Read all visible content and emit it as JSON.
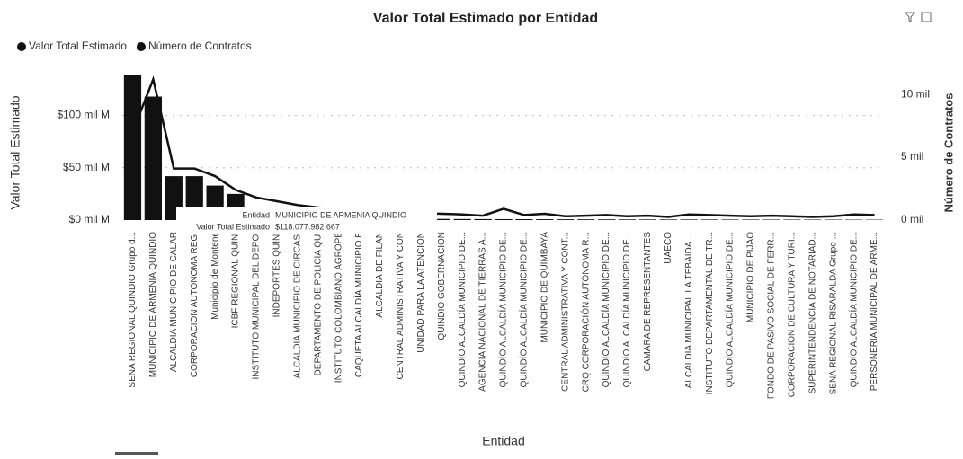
{
  "chart_data": {
    "type": "bar",
    "title": "Valor Total Estimado por Entidad",
    "x_label": "Entidad",
    "y_label": "Valor Total Estimado",
    "y2_label": "Número de Contratos",
    "categories": [
      "SENA REGIONAL QUINDIO Grupo d...",
      "MUNICIPIO DE ARMENIA QUINDIO",
      "ALCALDIA MUNICIPIO DE CALAR",
      "CORPORACION AUTONOMA REGI",
      "Municipio de Montene",
      "ICBF REGIONAL QUINI",
      "INSTITUTO MUNICIPAL DEL DEPOI",
      "INDEPORTES QUINI",
      "ALCALDIA MUNICIPIO DE CIRCASI",
      "DEPARTAMENTO DE POLICIA QUI",
      "INSTITUTO COLOMBIANO AGROPE",
      "CAQUETA ALCALDÍA MUNICIPIO E",
      "ALCALDIA DE FILAN",
      "CENTRAL ADMINISTRATIVA Y CON",
      "UNIDAD PARA LA ATENCION",
      "QUINDIO GOBERNACION",
      "QUINDÍO ALCALDÍA MUNICIPIO DE...",
      "AGENCIA NACIONAL DE TIERRAS A...",
      "QUINDÍO ALCALDÍA MUNICIPIO DE...",
      "QUINDÍO ALCALDÍA MUNICIPIO DE...",
      "MUNICIPIO DE QUIMBAYA",
      "CENTRAL ADMINISTRATIVA Y CONT...",
      "CRQ CORPORACIÓN AUTÓNOMA R...",
      "QUINDÍO ALCALDÍA MUNICIPIO DE...",
      "QUINDÍO ALCALDÍA MUNICIPIO DE...",
      "CAMARA DE REPRESENTANTES",
      "UAECO",
      "ALCALDIA MUNICIPAL LA TEBAIDA ...",
      "INSTITUTO DEPARTAMENTAL DE TR...",
      "QUINDÍO ALCALDÍA MUNICIPIO DE...",
      "MUNICIPIO DE PIJAO",
      "FONDO DE PASIVO SOCIAL DE FERR...",
      "CORPORACION DE CULTURA Y TURI...",
      "SUPERINTENDENCIA DE NOTARIAD...",
      "SENA REGIONAL RISARALDA Grupo ...",
      "QUINDÍO ALCALDÍA MUNICIPIO DE...",
      "PERSONERIA MUNICIPAL DE ARME..."
    ],
    "series": [
      {
        "name": "Valor Total Estimado",
        "color": "#111111",
        "values": [
          139000000000,
          118077982667,
          42000000000,
          42000000000,
          33000000000,
          25000000000,
          2500000000,
          2200000000,
          2000000000,
          1800000000,
          1600000000,
          1500000000,
          1400000000,
          1300000000,
          1200000000,
          1100000000,
          1000000000,
          950000000,
          900000000,
          850000000,
          800000000,
          750000000,
          700000000,
          650000000,
          600000000,
          580000000,
          560000000,
          540000000,
          520000000,
          500000000,
          480000000,
          460000000,
          440000000,
          420000000,
          400000000,
          380000000,
          360000000
        ]
      },
      {
        "name": "Número de Contratos",
        "color": "#111111",
        "axis": "y2",
        "values": [
          7000,
          11200,
          4100,
          4100,
          3500,
          2400,
          1800,
          1500,
          1200,
          1000,
          900,
          800,
          700,
          600,
          550,
          500,
          450,
          350,
          900,
          400,
          500,
          300,
          350,
          400,
          300,
          350,
          250,
          450,
          400,
          350,
          300,
          350,
          300,
          250,
          300,
          450,
          400
        ]
      }
    ],
    "ylim": [
      0,
      140000000000
    ],
    "yticks": [
      {
        "value": 0,
        "label": "$0 mil M"
      },
      {
        "value": 50000000000,
        "label": "$50 mil M"
      },
      {
        "value": 100000000000,
        "label": "$100 mil M"
      }
    ],
    "y2lim": [
      0,
      11650
    ],
    "y2ticks": [
      {
        "value": 0,
        "label": "0 mil"
      },
      {
        "value": 5000,
        "label": "5 mil"
      },
      {
        "value": 10000,
        "label": "10 mil"
      }
    ],
    "grid": true,
    "legend": "top-left",
    "tooltip": {
      "rows": [
        [
          "Entidad",
          "MUNICIPIO DE ARMENIA QUINDIO"
        ],
        [
          "Valor Total Estimado",
          "$118.077.982.667"
        ]
      ]
    }
  }
}
